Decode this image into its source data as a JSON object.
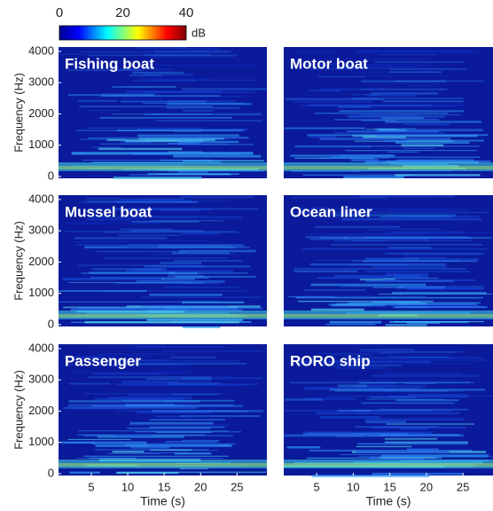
{
  "colorbar": {
    "lim": [
      0,
      40
    ],
    "ticks": [
      0,
      20,
      40
    ],
    "label": "dB"
  },
  "chart_data": [
    {
      "type": "spectrogram",
      "title": "Fishing boat",
      "ylabel": "Frequency (Hz)",
      "xlim": [
        0.5,
        29.1
      ],
      "ylim": [
        -60,
        4140
      ],
      "yticks": [
        0,
        1000,
        2000,
        3000,
        4000
      ]
    },
    {
      "type": "spectrogram",
      "title": "Motor boat",
      "xlim": [
        0.5,
        29.1
      ],
      "ylim": [
        -60,
        4140
      ]
    },
    {
      "type": "spectrogram",
      "title": "Mussel boat",
      "ylabel": "Frequency (Hz)",
      "xlim": [
        0.5,
        29.1
      ],
      "ylim": [
        -60,
        4140
      ],
      "yticks": [
        0,
        1000,
        2000,
        3000,
        4000
      ]
    },
    {
      "type": "spectrogram",
      "title": "Ocean liner",
      "xlim": [
        0.5,
        29.1
      ],
      "ylim": [
        -60,
        4140
      ]
    },
    {
      "type": "spectrogram",
      "title": "Passenger",
      "ylabel": "Frequency (Hz)",
      "xlabel": "Time (s)",
      "xlim": [
        0.5,
        29.1
      ],
      "ylim": [
        -60,
        4140
      ],
      "yticks": [
        0,
        1000,
        2000,
        3000,
        4000
      ],
      "xticks": [
        5,
        10,
        15,
        20,
        25
      ]
    },
    {
      "type": "spectrogram",
      "title": "RORO ship",
      "xlabel": "Time (s)",
      "xlim": [
        0.5,
        29.1
      ],
      "ylim": [
        -60,
        4140
      ],
      "xticks": [
        5,
        10,
        15,
        20,
        25
      ]
    }
  ]
}
